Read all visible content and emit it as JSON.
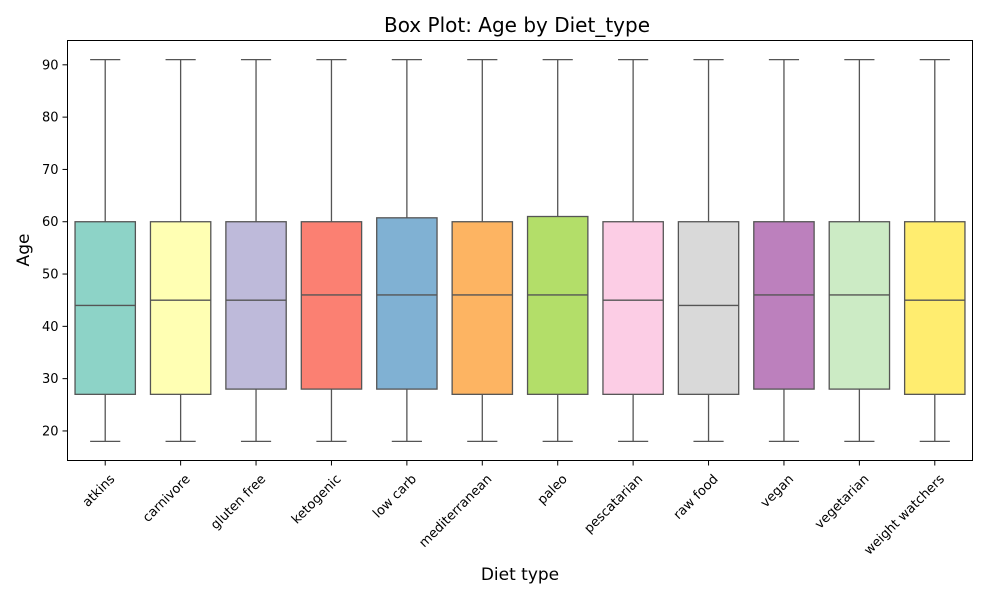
{
  "chart_data": {
    "type": "box",
    "title": "Box Plot: Age by Diet_type",
    "xlabel": "Diet type",
    "ylabel": "Age",
    "ylim": [
      14.35,
      94.65
    ],
    "yticks": [
      20,
      30,
      40,
      50,
      60,
      70,
      80,
      90
    ],
    "grid": false,
    "series": [
      {
        "category": "atkins",
        "min": 18,
        "q1": 27,
        "median": 44,
        "q3": 60,
        "max": 91,
        "color": "#8dd3c7"
      },
      {
        "category": "carnivore",
        "min": 18,
        "q1": 27,
        "median": 45,
        "q3": 60,
        "max": 91,
        "color": "#ffffb3"
      },
      {
        "category": "gluten free",
        "min": 18,
        "q1": 28,
        "median": 45,
        "q3": 60,
        "max": 91,
        "color": "#bebada"
      },
      {
        "category": "ketogenic",
        "min": 18,
        "q1": 28,
        "median": 46,
        "q3": 60,
        "max": 91,
        "color": "#fb8072"
      },
      {
        "category": "low carb",
        "min": 18,
        "q1": 28,
        "median": 46,
        "q3": 60.75,
        "max": 91,
        "color": "#80b1d3"
      },
      {
        "category": "mediterranean",
        "min": 18,
        "q1": 27,
        "median": 46,
        "q3": 60,
        "max": 91,
        "color": "#fdb462"
      },
      {
        "category": "paleo",
        "min": 18,
        "q1": 27,
        "median": 46,
        "q3": 61,
        "max": 91,
        "color": "#b3de69"
      },
      {
        "category": "pescatarian",
        "min": 18,
        "q1": 27,
        "median": 45,
        "q3": 60,
        "max": 91,
        "color": "#fccde5"
      },
      {
        "category": "raw food",
        "min": 18,
        "q1": 27,
        "median": 44,
        "q3": 60,
        "max": 91,
        "color": "#d9d9d9"
      },
      {
        "category": "vegan",
        "min": 18,
        "q1": 28,
        "median": 46,
        "q3": 60,
        "max": 91,
        "color": "#bc80bd"
      },
      {
        "category": "vegetarian",
        "min": 18,
        "q1": 28,
        "median": 46,
        "q3": 60,
        "max": 91,
        "color": "#ccebc5"
      },
      {
        "category": "weight watchers",
        "min": 18,
        "q1": 27,
        "median": 45,
        "q3": 60,
        "max": 91,
        "color": "#ffed6f"
      }
    ]
  }
}
